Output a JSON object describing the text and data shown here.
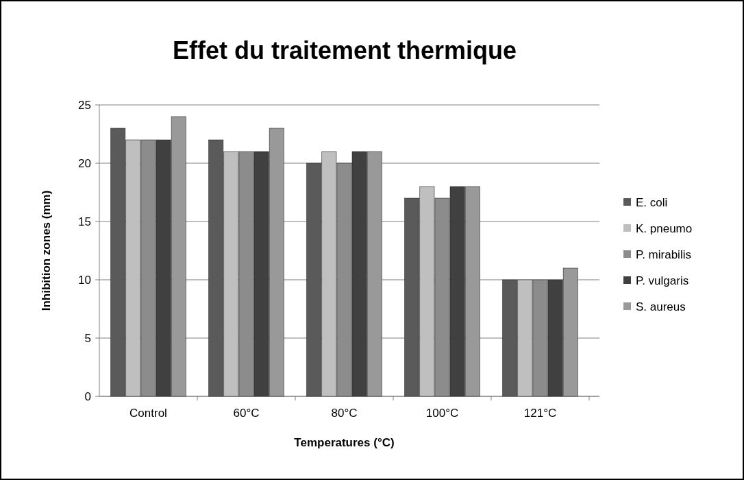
{
  "chart_data": {
    "type": "bar",
    "title": "Effet du traitement thermique",
    "xlabel": "Temperatures (°C)",
    "ylabel": "Inhibition zones (mm)",
    "categories": [
      "Control",
      "60°C",
      "80°C",
      "100°C",
      "121°C"
    ],
    "series": [
      {
        "name": "E. coli",
        "color": "#5a5a5a",
        "values": [
          23,
          22,
          20,
          17,
          10
        ]
      },
      {
        "name": "K. pneumo",
        "color": "#bfbfbf",
        "values": [
          22,
          21,
          21,
          18,
          10
        ]
      },
      {
        "name": "P. mirabilis",
        "color": "#8c8c8c",
        "values": [
          22,
          21,
          20,
          17,
          10
        ]
      },
      {
        "name": "P. vulgaris",
        "color": "#404040",
        "values": [
          22,
          21,
          21,
          18,
          10
        ]
      },
      {
        "name": "S. aureus",
        "color": "#999999",
        "values": [
          24,
          23,
          21,
          18,
          11
        ]
      }
    ],
    "ylim": [
      0,
      25
    ],
    "yticks": [
      0,
      5,
      10,
      15,
      20,
      25
    ],
    "grid": "y",
    "legend": "right"
  }
}
